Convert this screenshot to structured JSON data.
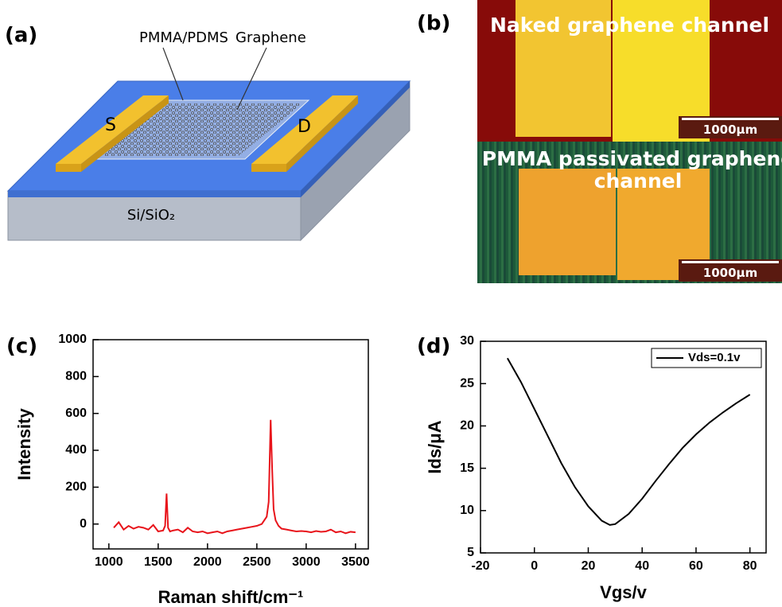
{
  "panel_a": {
    "label": "(a)",
    "pmma": "PMMA/PDMS",
    "graphene": "Graphene",
    "source": "S",
    "drain": "D",
    "substrate": "Si/SiO₂"
  },
  "panel_b": {
    "label": "(b)",
    "top_caption": "Naked graphene channel",
    "bottom_caption": "PMMA passivated graphene channel",
    "scale_bars": [
      "1000μm",
      "1000μm"
    ]
  },
  "chart_data": [
    {
      "type": "line",
      "label": "(c)",
      "xlabel": "Raman shift/cm⁻¹",
      "ylabel": "Intensity",
      "x": [
        1050,
        1100,
        1150,
        1200,
        1250,
        1300,
        1350,
        1400,
        1450,
        1500,
        1550,
        1570,
        1585,
        1600,
        1620,
        1650,
        1700,
        1750,
        1800,
        1850,
        1900,
        1950,
        2000,
        2050,
        2100,
        2150,
        2200,
        2250,
        2300,
        2350,
        2400,
        2450,
        2500,
        2550,
        2600,
        2620,
        2640,
        2655,
        2670,
        2690,
        2720,
        2750,
        2800,
        2850,
        2900,
        2950,
        3000,
        3050,
        3100,
        3150,
        3200,
        3250,
        3300,
        3350,
        3400,
        3450,
        3500
      ],
      "series": [
        {
          "color": "#e8141b",
          "values": [
            -20,
            10,
            -30,
            -10,
            -25,
            -15,
            -20,
            -30,
            -5,
            -40,
            -35,
            -10,
            165,
            -20,
            -40,
            -35,
            -30,
            -45,
            -20,
            -40,
            -45,
            -40,
            -50,
            -45,
            -40,
            -50,
            -40,
            -35,
            -30,
            -25,
            -20,
            -15,
            -10,
            0,
            40,
            120,
            565,
            300,
            80,
            20,
            -10,
            -25,
            -30,
            -35,
            -40,
            -38,
            -40,
            -45,
            -38,
            -42,
            -40,
            -30,
            -45,
            -40,
            -50,
            -42,
            -45
          ]
        }
      ],
      "xlim": [
        840,
        3630
      ],
      "xticks": [
        1000,
        1500,
        2000,
        2500,
        3000,
        3500
      ],
      "ylim": [
        -135,
        1000
      ],
      "yticks": [
        0,
        200,
        400,
        600,
        800,
        1000
      ]
    },
    {
      "type": "line",
      "label": "(d)",
      "xlabel": "Vgs/v",
      "ylabel": "Ids/μA",
      "x": [
        -10,
        -5,
        0,
        5,
        10,
        15,
        20,
        25,
        28,
        30,
        35,
        40,
        45,
        50,
        55,
        60,
        65,
        70,
        75,
        80
      ],
      "series": [
        {
          "name": "Vds=0.1v",
          "color": "#000000",
          "values": [
            28,
            25.2,
            22,
            18.8,
            15.6,
            12.8,
            10.5,
            8.8,
            8.3,
            8.4,
            9.6,
            11.4,
            13.5,
            15.5,
            17.4,
            19,
            20.4,
            21.6,
            22.7,
            23.7
          ]
        }
      ],
      "xlim": [
        -20,
        86
      ],
      "xticks": [
        -20,
        0,
        20,
        40,
        60,
        80
      ],
      "ylim": [
        5,
        30
      ],
      "yticks": [
        5,
        10,
        15,
        20,
        25,
        30
      ],
      "legend": "upper right"
    }
  ]
}
